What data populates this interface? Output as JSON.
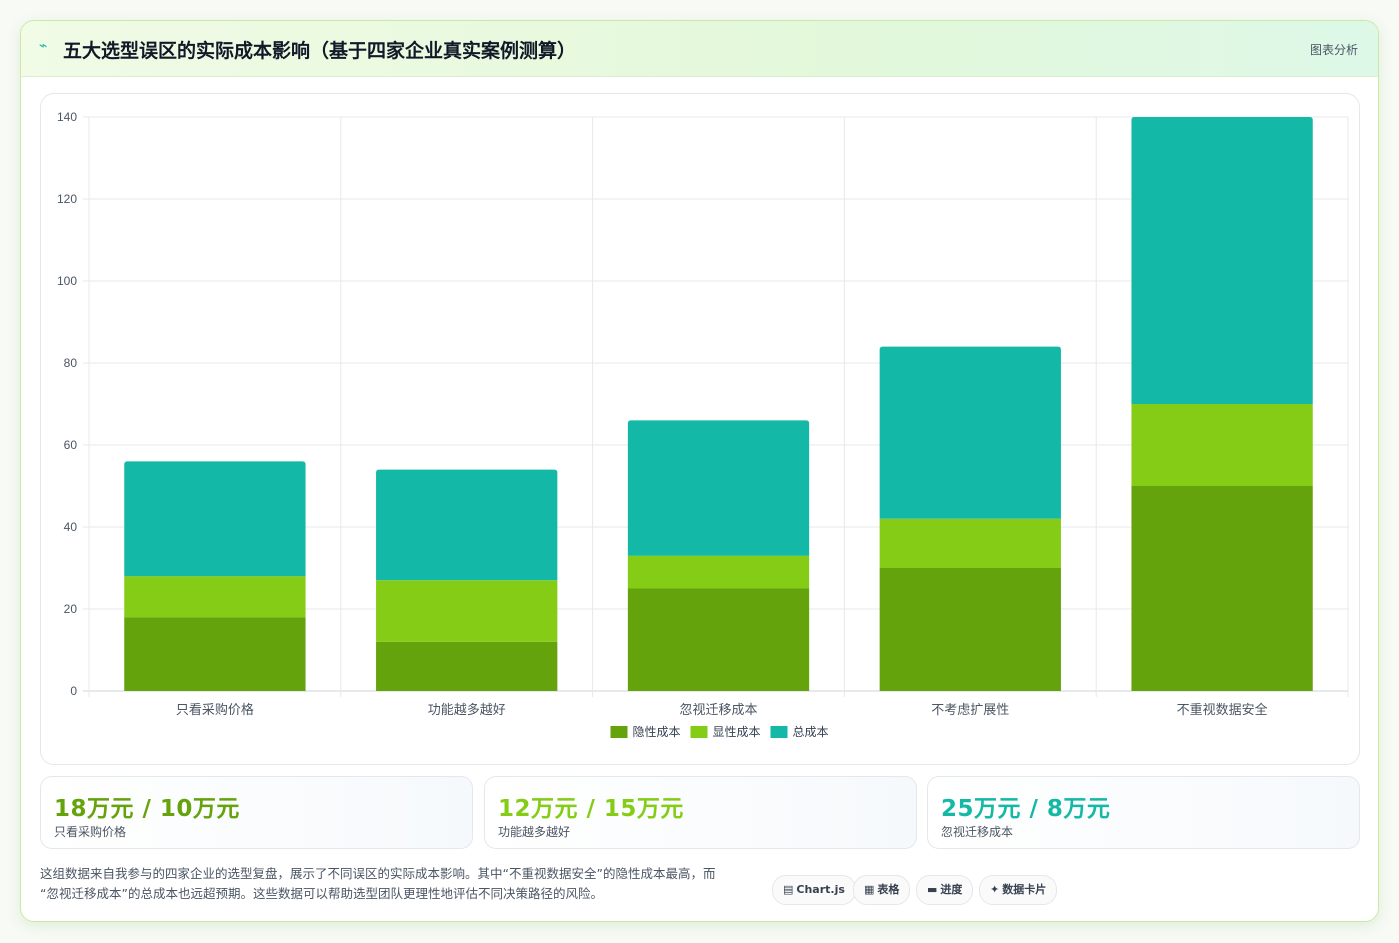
{
  "header": {
    "icon": "chart-pulse-icon",
    "title": "五大选型误区的实际成本影响（基于四家企业真实案例测算）",
    "tag": "图表分析"
  },
  "colors": {
    "hidden": "#65a30d",
    "explicit": "#84cc16",
    "total": "#14b8a6"
  },
  "chart_data": {
    "type": "bar",
    "stacked": true,
    "categories": [
      "只看采购价格",
      "功能越多越好",
      "忽视迁移成本",
      "不考虑扩展性",
      "不重视数据安全"
    ],
    "series": [
      {
        "name": "隐性成本",
        "color": "#65a30d",
        "values": [
          18,
          12,
          25,
          30,
          50
        ]
      },
      {
        "name": "显性成本",
        "color": "#84cc16",
        "values": [
          10,
          15,
          8,
          12,
          20
        ]
      },
      {
        "name": "总成本",
        "color": "#14b8a6",
        "values": [
          28,
          27,
          33,
          42,
          70
        ]
      }
    ],
    "yticks": [
      "0",
      "20",
      "40",
      "60",
      "80",
      "100",
      "120",
      "140"
    ],
    "ylim": [
      0,
      140
    ],
    "grid": true,
    "legend": "bottom"
  },
  "stats": [
    {
      "value": "18万元 / 10万元",
      "label": "只看采购价格",
      "color": "#65a30d"
    },
    {
      "value": "12万元 / 15万元",
      "label": "功能越多越好",
      "color": "#84cc16"
    },
    {
      "value": "25万元 / 8万元",
      "label": "忽视迁移成本",
      "color": "#14b8a6"
    }
  ],
  "description": {
    "line1": "这组数据来自我参与的四家企业的选型复盘，展示了不同误区的实际成本影响。其中“不重视数据安全”的隐性成本最高，而",
    "line2": "“忽视迁移成本”的总成本也远超预期。这些数据可以帮助选型团队更理性地评估不同决策路径的风险。"
  },
  "buttons": [
    {
      "icon": "chart-icon",
      "glyph": "▤",
      "label": "Chart.js"
    },
    {
      "icon": "table-icon",
      "glyph": "▦",
      "label": "表格"
    },
    {
      "icon": "progress-icon",
      "glyph": "▬",
      "label": "进度"
    },
    {
      "icon": "sparkle-icon",
      "glyph": "✦",
      "label": "数据卡片"
    }
  ]
}
